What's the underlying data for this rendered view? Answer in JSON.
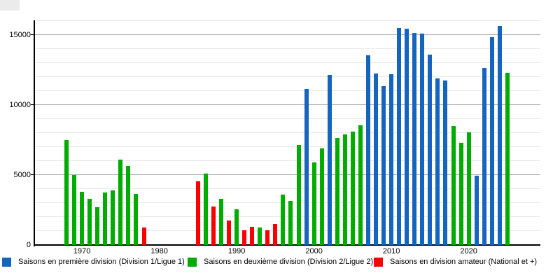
{
  "page": {
    "background": "#ffffff"
  },
  "colors": {
    "blue": "#1565bf",
    "green": "#00ac00",
    "red": "#fb0000",
    "axis": "#000000",
    "major_grid": "#b0b0b0",
    "minor_grid": "#ece8e8",
    "corner_box": "#ebebeb"
  },
  "chart_data": {
    "type": "bar",
    "title": "",
    "xlabel": "",
    "ylabel": "",
    "ylim": [
      0,
      16000
    ],
    "yticks": [
      0,
      5000,
      10000,
      15000
    ],
    "ytick_labels": [
      "0",
      "5000",
      "10000",
      "15000"
    ],
    "xticks": [
      1970,
      1980,
      1990,
      2000,
      2010,
      2020
    ],
    "xrange": [
      1968,
      2025
    ],
    "grid": {
      "minor_step": 1000,
      "major_step": 5000,
      "horizontal_only": true
    },
    "legend_position": "bottom",
    "series": [
      {
        "name": "Saisons en première division (Division 1/Ligue 1)",
        "color": "#1565bf",
        "points": [
          [
            1999,
            11150
          ],
          [
            2002,
            12150
          ],
          [
            2007,
            13550
          ],
          [
            2008,
            12250
          ],
          [
            2009,
            11350
          ],
          [
            2010,
            12200
          ],
          [
            2011,
            15500
          ],
          [
            2012,
            15450
          ],
          [
            2013,
            15150
          ],
          [
            2014,
            15100
          ],
          [
            2015,
            13600
          ],
          [
            2016,
            11900
          ],
          [
            2017,
            11750
          ],
          [
            2021,
            4950
          ],
          [
            2022,
            12650
          ],
          [
            2023,
            14850
          ],
          [
            2024,
            15650
          ]
        ]
      },
      {
        "name": "Saisons en deuxième division (Division 2/Ligue 2)",
        "color": "#00ac00",
        "points": [
          [
            1968,
            7500
          ],
          [
            1969,
            5000
          ],
          [
            1970,
            3800
          ],
          [
            1971,
            3300
          ],
          [
            1972,
            2700
          ],
          [
            1973,
            3750
          ],
          [
            1974,
            3900
          ],
          [
            1975,
            6100
          ],
          [
            1976,
            5650
          ],
          [
            1977,
            3650
          ],
          [
            1986,
            5100
          ],
          [
            1988,
            3300
          ],
          [
            1990,
            2550
          ],
          [
            1993,
            1250
          ],
          [
            1996,
            3600
          ],
          [
            1997,
            3150
          ],
          [
            1998,
            7150
          ],
          [
            2000,
            5900
          ],
          [
            2001,
            6900
          ],
          [
            2003,
            7650
          ],
          [
            2004,
            7900
          ],
          [
            2005,
            8100
          ],
          [
            2006,
            8550
          ],
          [
            2018,
            8500
          ],
          [
            2019,
            7300
          ],
          [
            2020,
            8050
          ],
          [
            2025,
            12300
          ]
        ]
      },
      {
        "name": "Saisons en division amateur (National et +)",
        "color": "#fb0000",
        "points": [
          [
            1978,
            1250
          ],
          [
            1985,
            4550
          ],
          [
            1987,
            2750
          ],
          [
            1989,
            1750
          ],
          [
            1991,
            1050
          ],
          [
            1992,
            1300
          ],
          [
            1994,
            1050
          ],
          [
            1995,
            1500
          ]
        ]
      }
    ]
  }
}
